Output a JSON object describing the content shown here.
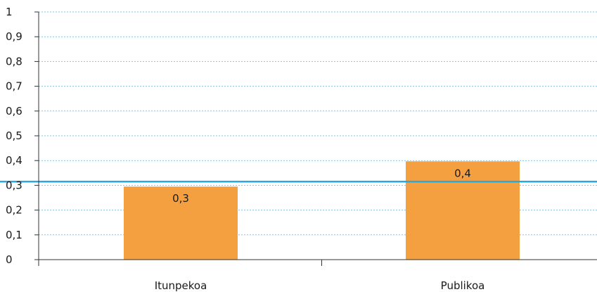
{
  "chart_data": {
    "type": "bar",
    "categories": [
      "Itunpekoa",
      "Publikoa"
    ],
    "values": [
      0.295,
      0.397
    ],
    "data_labels": [
      "0,3",
      "0,4"
    ],
    "ylim": [
      0,
      1
    ],
    "y_ticks": [
      {
        "value": 0,
        "label": "0"
      },
      {
        "value": 0.1,
        "label": "0,1"
      },
      {
        "value": 0.2,
        "label": "0,2"
      },
      {
        "value": 0.3,
        "label": "0,3"
      },
      {
        "value": 0.4,
        "label": "0,4"
      },
      {
        "value": 0.5,
        "label": "0,5"
      },
      {
        "value": 0.6,
        "label": "0,6"
      },
      {
        "value": 0.7,
        "label": "0,7"
      },
      {
        "value": 0.8,
        "label": "0,8"
      },
      {
        "value": 0.9,
        "label": "0,9"
      },
      {
        "value": 1,
        "label": "1"
      }
    ],
    "reference_line": {
      "value": 0.315,
      "color": "#29a8df"
    },
    "bar_color": "#f5a040",
    "grid": true,
    "grid_color": "#7fc4e8"
  }
}
